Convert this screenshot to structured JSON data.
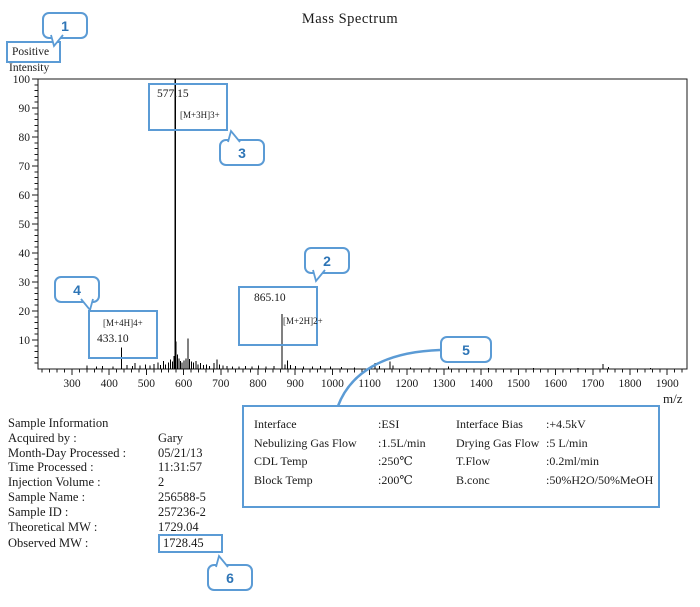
{
  "title": "Mass Spectrum",
  "colors": {
    "accent": "#5b9bd5",
    "callout_number": "#2e75b6",
    "ink": "#1a1a1a"
  },
  "callouts": [
    {
      "label": "1"
    },
    {
      "label": "2"
    },
    {
      "label": "3"
    },
    {
      "label": "4"
    },
    {
      "label": "5"
    },
    {
      "label": "6"
    }
  ],
  "axis": {
    "positive": "Positive",
    "intensity": "Intensity",
    "mz": "m/z"
  },
  "chart_data": {
    "type": "bar",
    "style": "stick-mass-spectrum",
    "title": "Mass Spectrum",
    "xlabel": "m/z",
    "ylabel": "Positive Intensity",
    "xlim": [
      210,
      1950
    ],
    "ylim": [
      0,
      100
    ],
    "grid": false,
    "x_ticks": [
      300,
      400,
      500,
      600,
      700,
      800,
      900,
      1000,
      1100,
      1200,
      1300,
      1400,
      1500,
      1600,
      1700,
      1800,
      1900
    ],
    "y_ticks": [
      10,
      20,
      30,
      40,
      50,
      60,
      70,
      80,
      90,
      100
    ],
    "labeled_peaks": [
      {
        "mz": "577.15",
        "ion": "[M+3H]3+",
        "intensity": 100
      },
      {
        "mz": "865.10",
        "ion": "[M+2H]2+",
        "intensity": 19
      },
      {
        "mz": "433.10",
        "ion": "[M+4H]4+",
        "intensity": 7.5
      }
    ],
    "peaks": [
      [
        340,
        1.2
      ],
      [
        366,
        0.8
      ],
      [
        382,
        1.0
      ],
      [
        410,
        0.9
      ],
      [
        433.1,
        7.5
      ],
      [
        448,
        1.4
      ],
      [
        462,
        1.0
      ],
      [
        470,
        2.0
      ],
      [
        483,
        1.2
      ],
      [
        497,
        1.5
      ],
      [
        510,
        1.2
      ],
      [
        521,
        1.8
      ],
      [
        531,
        2.2
      ],
      [
        538,
        1.4
      ],
      [
        546,
        2.8
      ],
      [
        552,
        1.6
      ],
      [
        559,
        2.2
      ],
      [
        565,
        3.2
      ],
      [
        570,
        2.6
      ],
      [
        574,
        4.5
      ],
      [
        577.15,
        100
      ],
      [
        580,
        9.5
      ],
      [
        583,
        5.0
      ],
      [
        587,
        3.6
      ],
      [
        591,
        2.8
      ],
      [
        596,
        2.2
      ],
      [
        601,
        3.0
      ],
      [
        606,
        3.6
      ],
      [
        612,
        10.5
      ],
      [
        616,
        3.4
      ],
      [
        621,
        2.6
      ],
      [
        627,
        2.2
      ],
      [
        633,
        2.8
      ],
      [
        639,
        1.6
      ],
      [
        646,
        2.0
      ],
      [
        653,
        1.3
      ],
      [
        661,
        1.5
      ],
      [
        670,
        1.0
      ],
      [
        682,
        2.0
      ],
      [
        690,
        3.2
      ],
      [
        697,
        1.6
      ],
      [
        706,
        1.2
      ],
      [
        716,
        1.0
      ],
      [
        731,
        0.9
      ],
      [
        749,
        0.8
      ],
      [
        766,
        1.0
      ],
      [
        784,
        0.8
      ],
      [
        801,
        1.2
      ],
      [
        822,
        0.8
      ],
      [
        843,
        1.0
      ],
      [
        865.1,
        19
      ],
      [
        872,
        1.6
      ],
      [
        879,
        3.0
      ],
      [
        887,
        1.3
      ],
      [
        901,
        1.0
      ],
      [
        922,
        0.8
      ],
      [
        946,
        0.8
      ],
      [
        968,
        1.0
      ],
      [
        995,
        0.8
      ],
      [
        1024,
        0.7
      ],
      [
        1060,
        0.6
      ],
      [
        1115,
        2.0
      ],
      [
        1126,
        1.0
      ],
      [
        1155,
        2.6
      ],
      [
        1163,
        1.2
      ],
      [
        1210,
        0.6
      ],
      [
        1262,
        0.5
      ],
      [
        1312,
        0.8
      ],
      [
        1420,
        0.4
      ],
      [
        1540,
        0.4
      ],
      [
        1660,
        0.4
      ],
      [
        1727,
        1.8
      ],
      [
        1742,
        0.7
      ],
      [
        1855,
        0.4
      ]
    ]
  },
  "instrument": {
    "left": [
      {
        "label": "Interface",
        "value": ":ESI"
      },
      {
        "label": "Nebulizing Gas Flow",
        "value": ":1.5L/min"
      },
      {
        "label": "CDL Temp",
        "value": ":250℃"
      },
      {
        "label": "Block Temp",
        "value": ":200℃"
      }
    ],
    "right": [
      {
        "label": "Interface Bias",
        "value": ":+4.5kV"
      },
      {
        "label": "Drying Gas Flow",
        "value": ":5 L/min"
      },
      {
        "label": "T.Flow",
        "value": ":0.2ml/min"
      },
      {
        "label": "B.conc",
        "value": ":50%H2O/50%MeOH"
      }
    ]
  },
  "sample_info": {
    "header": "Sample Information",
    "rows": [
      {
        "label": "Acquired by :",
        "value": "Gary"
      },
      {
        "label": "Month-Day Processed :",
        "value": "05/21/13"
      },
      {
        "label": "Time Processed :",
        "value": "11:31:57"
      },
      {
        "label": "Injection Volume :",
        "value": "2"
      },
      {
        "label": "Sample Name :",
        "value": "256588-5"
      },
      {
        "label": "Sample ID :",
        "value": "257236-2"
      },
      {
        "label": "Theoretical MW :",
        "value": "1729.04"
      },
      {
        "label": "Observed MW :",
        "value": "1728.45",
        "boxed": true
      }
    ]
  }
}
